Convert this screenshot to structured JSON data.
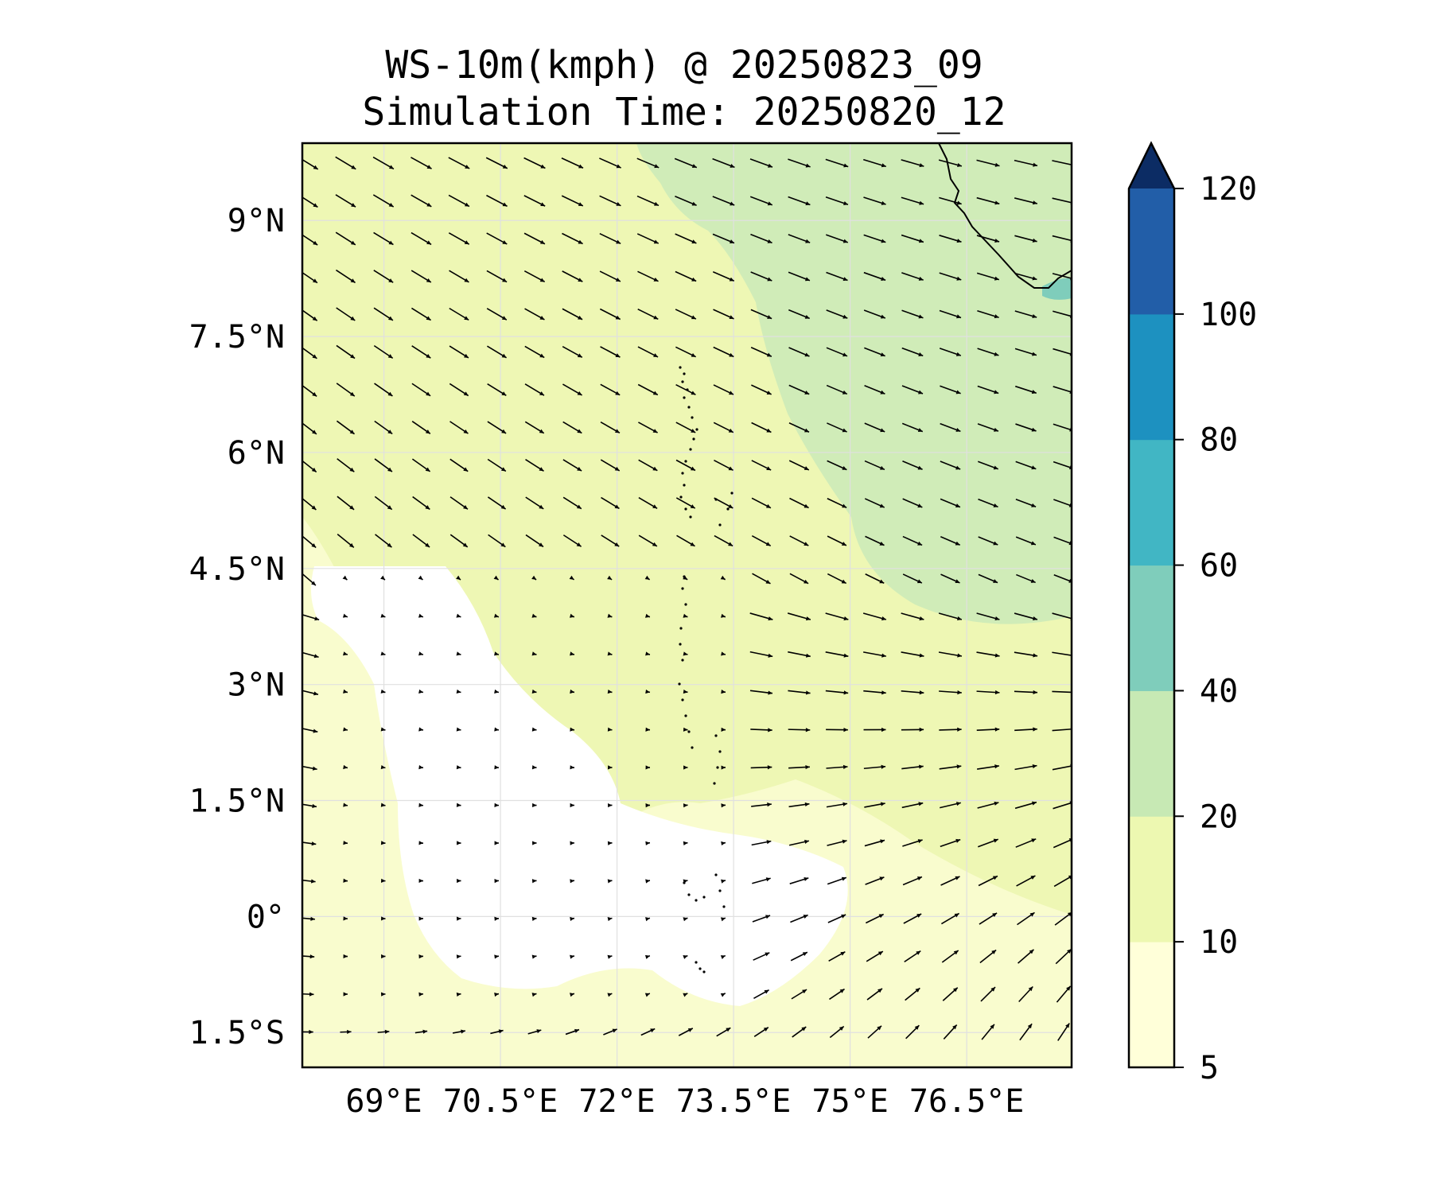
{
  "title": {
    "line1": "WS-10m(kmph) @ 20250823_09",
    "line2": "Simulation Time: 20250820_12"
  },
  "map": {
    "lon_range": [
      67.95,
      77.85
    ],
    "lat_range": [
      -1.95,
      10.0
    ],
    "lat_ticks": [
      {
        "value": 9,
        "label": "9°N"
      },
      {
        "value": 7.5,
        "label": "7.5°N"
      },
      {
        "value": 6,
        "label": "6°N"
      },
      {
        "value": 4.5,
        "label": "4.5°N"
      },
      {
        "value": 3,
        "label": "3°N"
      },
      {
        "value": 1.5,
        "label": "1.5°N"
      },
      {
        "value": 0,
        "label": "0°"
      },
      {
        "value": -1.5,
        "label": "1.5°S"
      }
    ],
    "lon_ticks": [
      {
        "value": 69,
        "label": "69°E"
      },
      {
        "value": 70.5,
        "label": "70.5°E"
      },
      {
        "value": 72,
        "label": "72°E"
      },
      {
        "value": 73.5,
        "label": "73.5°E"
      },
      {
        "value": 75,
        "label": "75°E"
      },
      {
        "value": 76.5,
        "label": "76.5°E"
      }
    ],
    "gridlines": true
  },
  "colorbar": {
    "levels": [
      5,
      10,
      20,
      40,
      60,
      80,
      100,
      120
    ],
    "labels": [
      "5",
      "10",
      "20",
      "40",
      "60",
      "80",
      "100",
      "120"
    ],
    "colors": [
      "#ffffd9",
      "#edf8b1",
      "#c7e9b4",
      "#7fcdbb",
      "#41b6c4",
      "#1d91c0",
      "#225ea8",
      "#253494"
    ],
    "extend_color": "#0c2c64",
    "extend": "max"
  },
  "colors": {
    "calm": "#ffffff",
    "light": "#f9fcce",
    "moderate": "#eef7b4",
    "fresh": "#d0ecb8",
    "strong": "#7fcdbb",
    "arrow": "#000000",
    "grid": "#e0e0e0"
  }
}
